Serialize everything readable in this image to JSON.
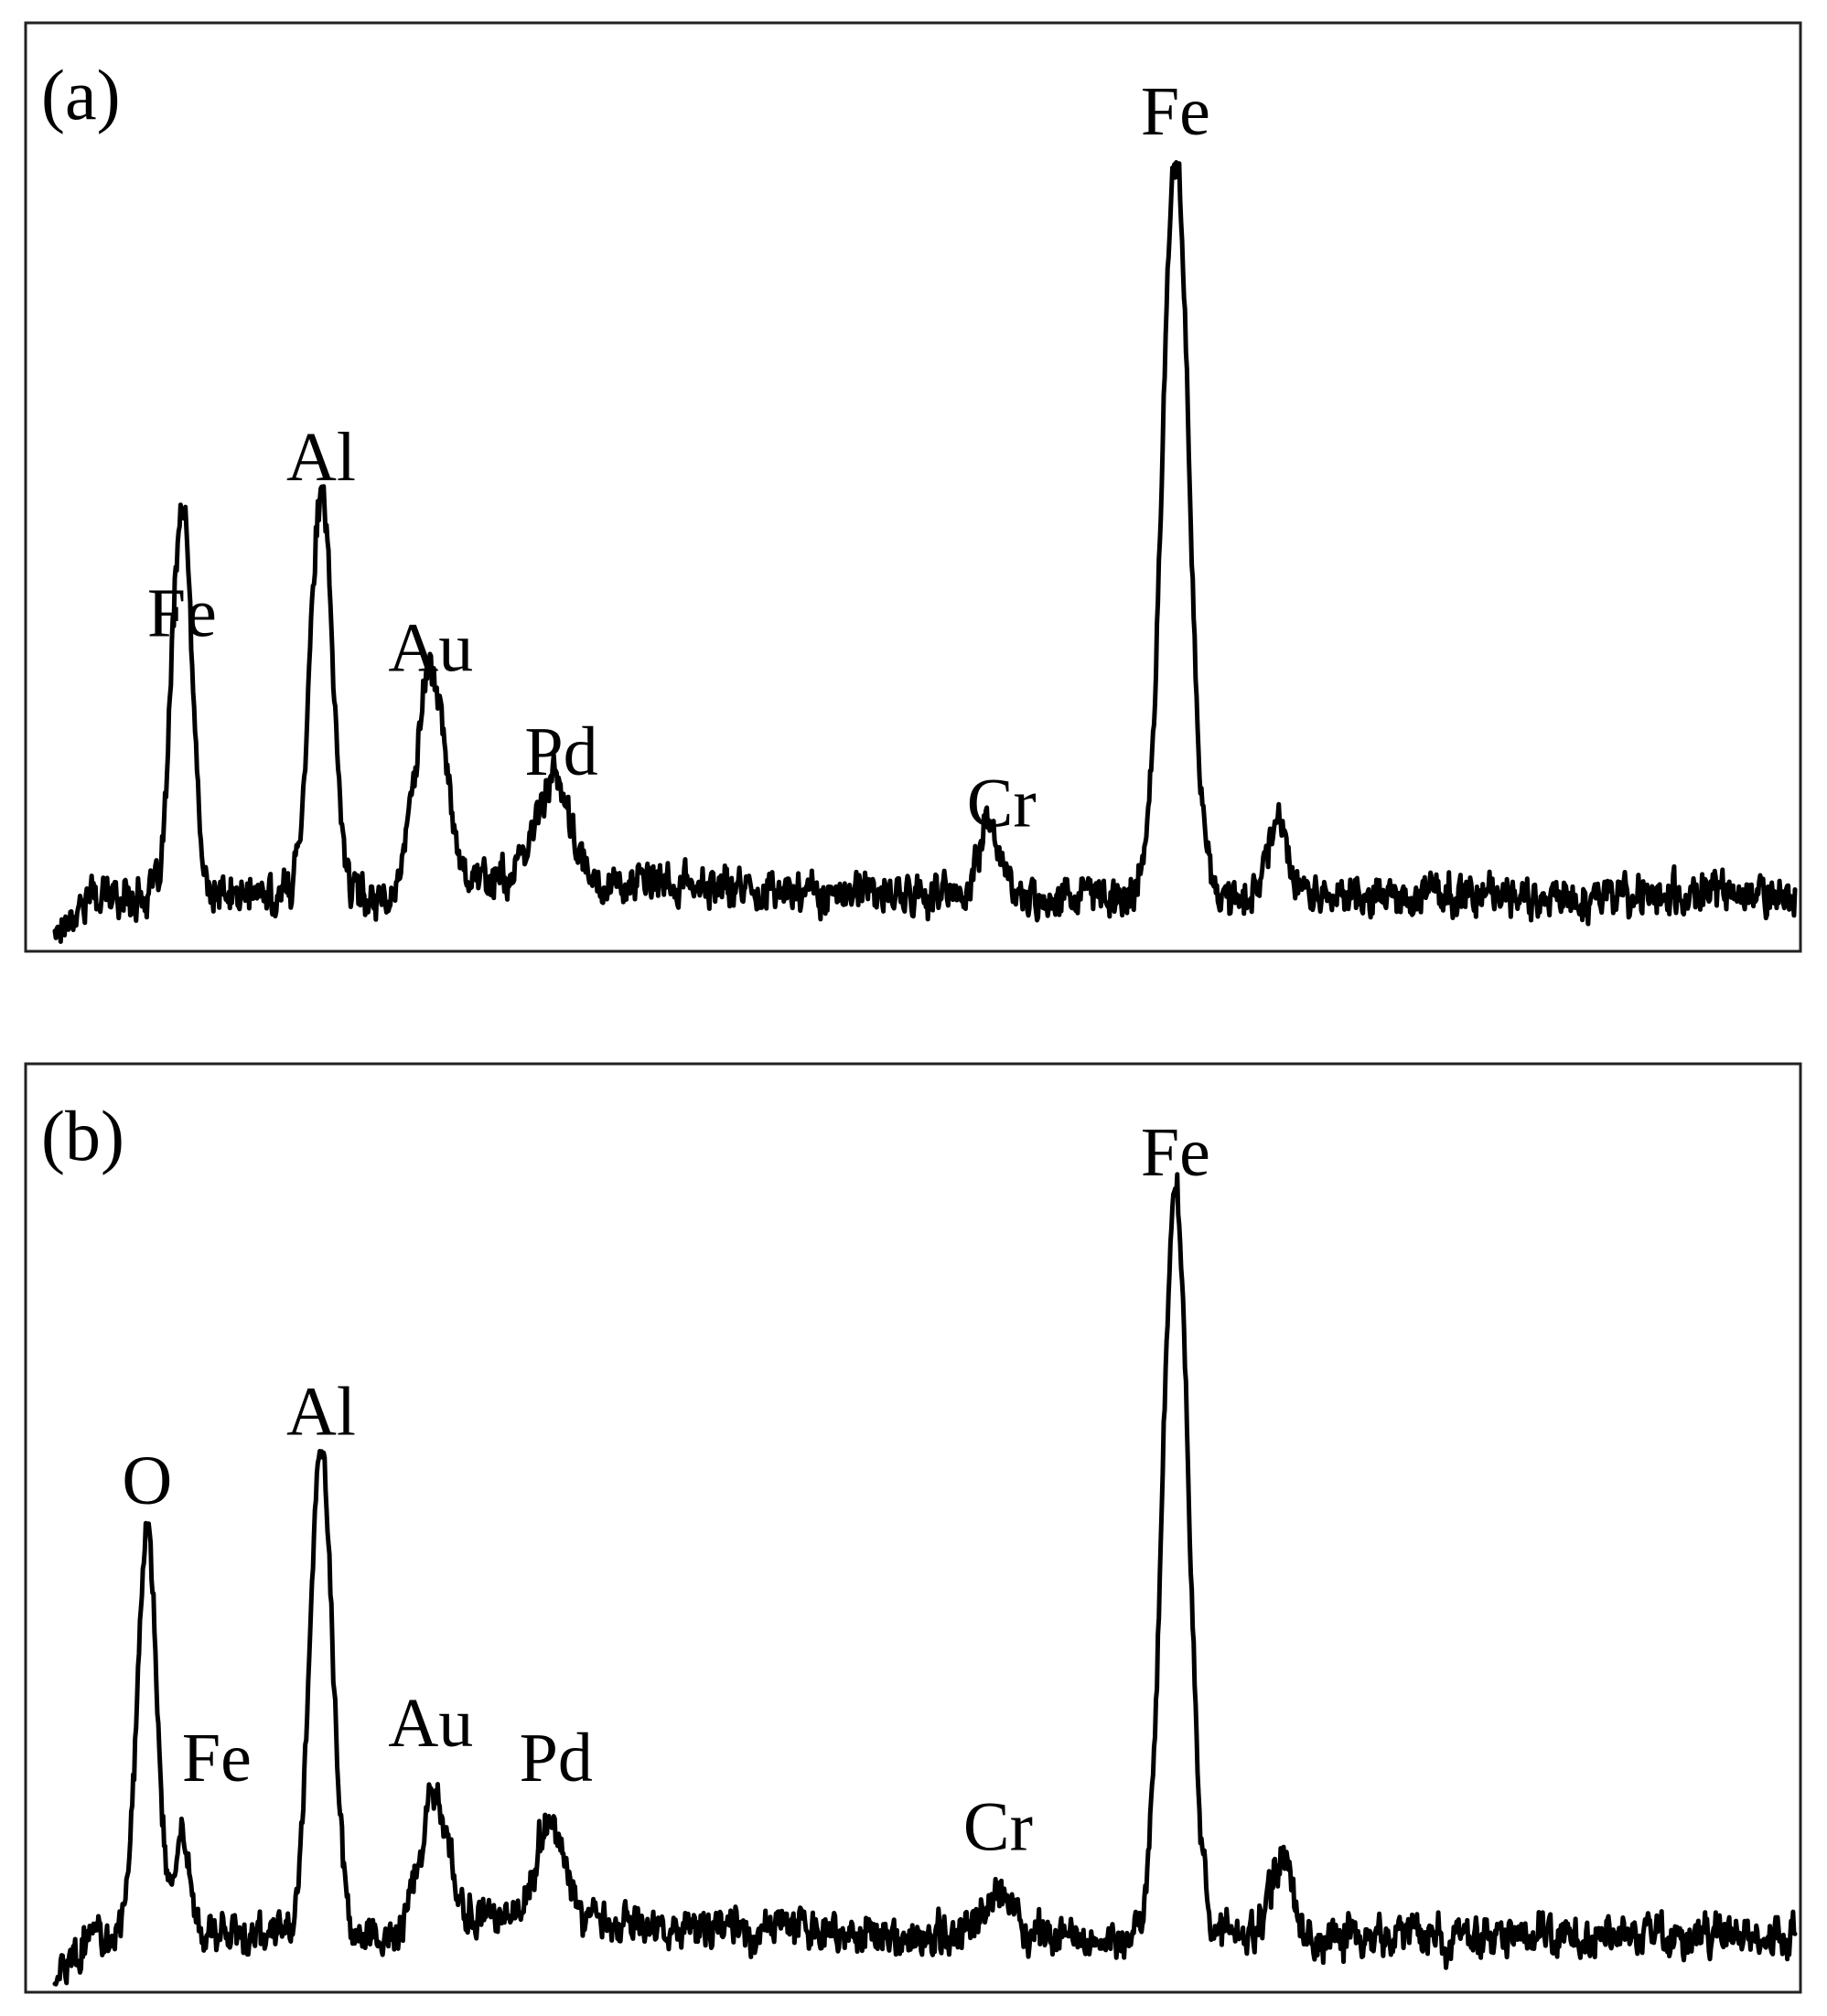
{
  "chart_data": [
    {
      "type": "line",
      "panel_label": "(a)",
      "xlim": [
        0,
        100
      ],
      "ylim": [
        0,
        100
      ],
      "grid": false,
      "axis_ticks": false,
      "baseline": 6,
      "peaks": [
        {
          "x": 7.0,
          "height": 28,
          "width": 0.45,
          "label": "Fe"
        },
        {
          "x": 7.6,
          "height": 28,
          "width": 0.45,
          "label": ""
        },
        {
          "x": 15.3,
          "height": 46,
          "width": 0.65,
          "label": "Al"
        },
        {
          "x": 21.6,
          "height": 24,
          "width": 0.8,
          "label": "Au"
        },
        {
          "x": 28.6,
          "height": 12,
          "width": 0.9,
          "label": "Pd"
        },
        {
          "x": 53.7,
          "height": 9,
          "width": 0.55,
          "label": "Cr"
        },
        {
          "x": 64.4,
          "height": 86,
          "width": 0.75,
          "label": "Fe"
        },
        {
          "x": 70.3,
          "height": 9,
          "width": 0.6,
          "label": ""
        }
      ],
      "labels": [
        {
          "text": "Fe",
          "x": 7.3,
          "y": 36
        },
        {
          "text": "Al",
          "x": 15.3,
          "y": 54
        },
        {
          "text": "Au",
          "x": 21.6,
          "y": 32
        },
        {
          "text": "Pd",
          "x": 29.1,
          "y": 20
        },
        {
          "text": "Cr",
          "x": 54.4,
          "y": 14
        },
        {
          "text": "Fe",
          "x": 64.4,
          "y": 94
        }
      ]
    },
    {
      "type": "line",
      "panel_label": "(b)",
      "xlim": [
        0,
        100
      ],
      "ylim": [
        0,
        100
      ],
      "grid": false,
      "axis_ticks": false,
      "baseline": 6,
      "peaks": [
        {
          "x": 5.3,
          "height": 47,
          "width": 0.55,
          "label": "O"
        },
        {
          "x": 7.3,
          "height": 12,
          "width": 0.45,
          "label": "Fe"
        },
        {
          "x": 15.3,
          "height": 56,
          "width": 0.65,
          "label": "Al"
        },
        {
          "x": 21.8,
          "height": 14,
          "width": 0.75,
          "label": "Au"
        },
        {
          "x": 28.5,
          "height": 12,
          "width": 0.8,
          "label": "Pd"
        },
        {
          "x": 54.0,
          "height": 5,
          "width": 0.8,
          "label": "Cr"
        },
        {
          "x": 64.4,
          "height": 86,
          "width": 0.75,
          "label": "Fe"
        },
        {
          "x": 70.5,
          "height": 9,
          "width": 0.6,
          "label": ""
        }
      ],
      "labels": [
        {
          "text": "O",
          "x": 5.3,
          "y": 56
        },
        {
          "text": "Fe",
          "x": 9.3,
          "y": 24
        },
        {
          "text": "Al",
          "x": 15.3,
          "y": 64
        },
        {
          "text": "Au",
          "x": 21.6,
          "y": 28
        },
        {
          "text": "Pd",
          "x": 28.8,
          "y": 24
        },
        {
          "text": "Cr",
          "x": 54.2,
          "y": 16
        },
        {
          "text": "Fe",
          "x": 64.4,
          "y": 94
        }
      ]
    }
  ]
}
